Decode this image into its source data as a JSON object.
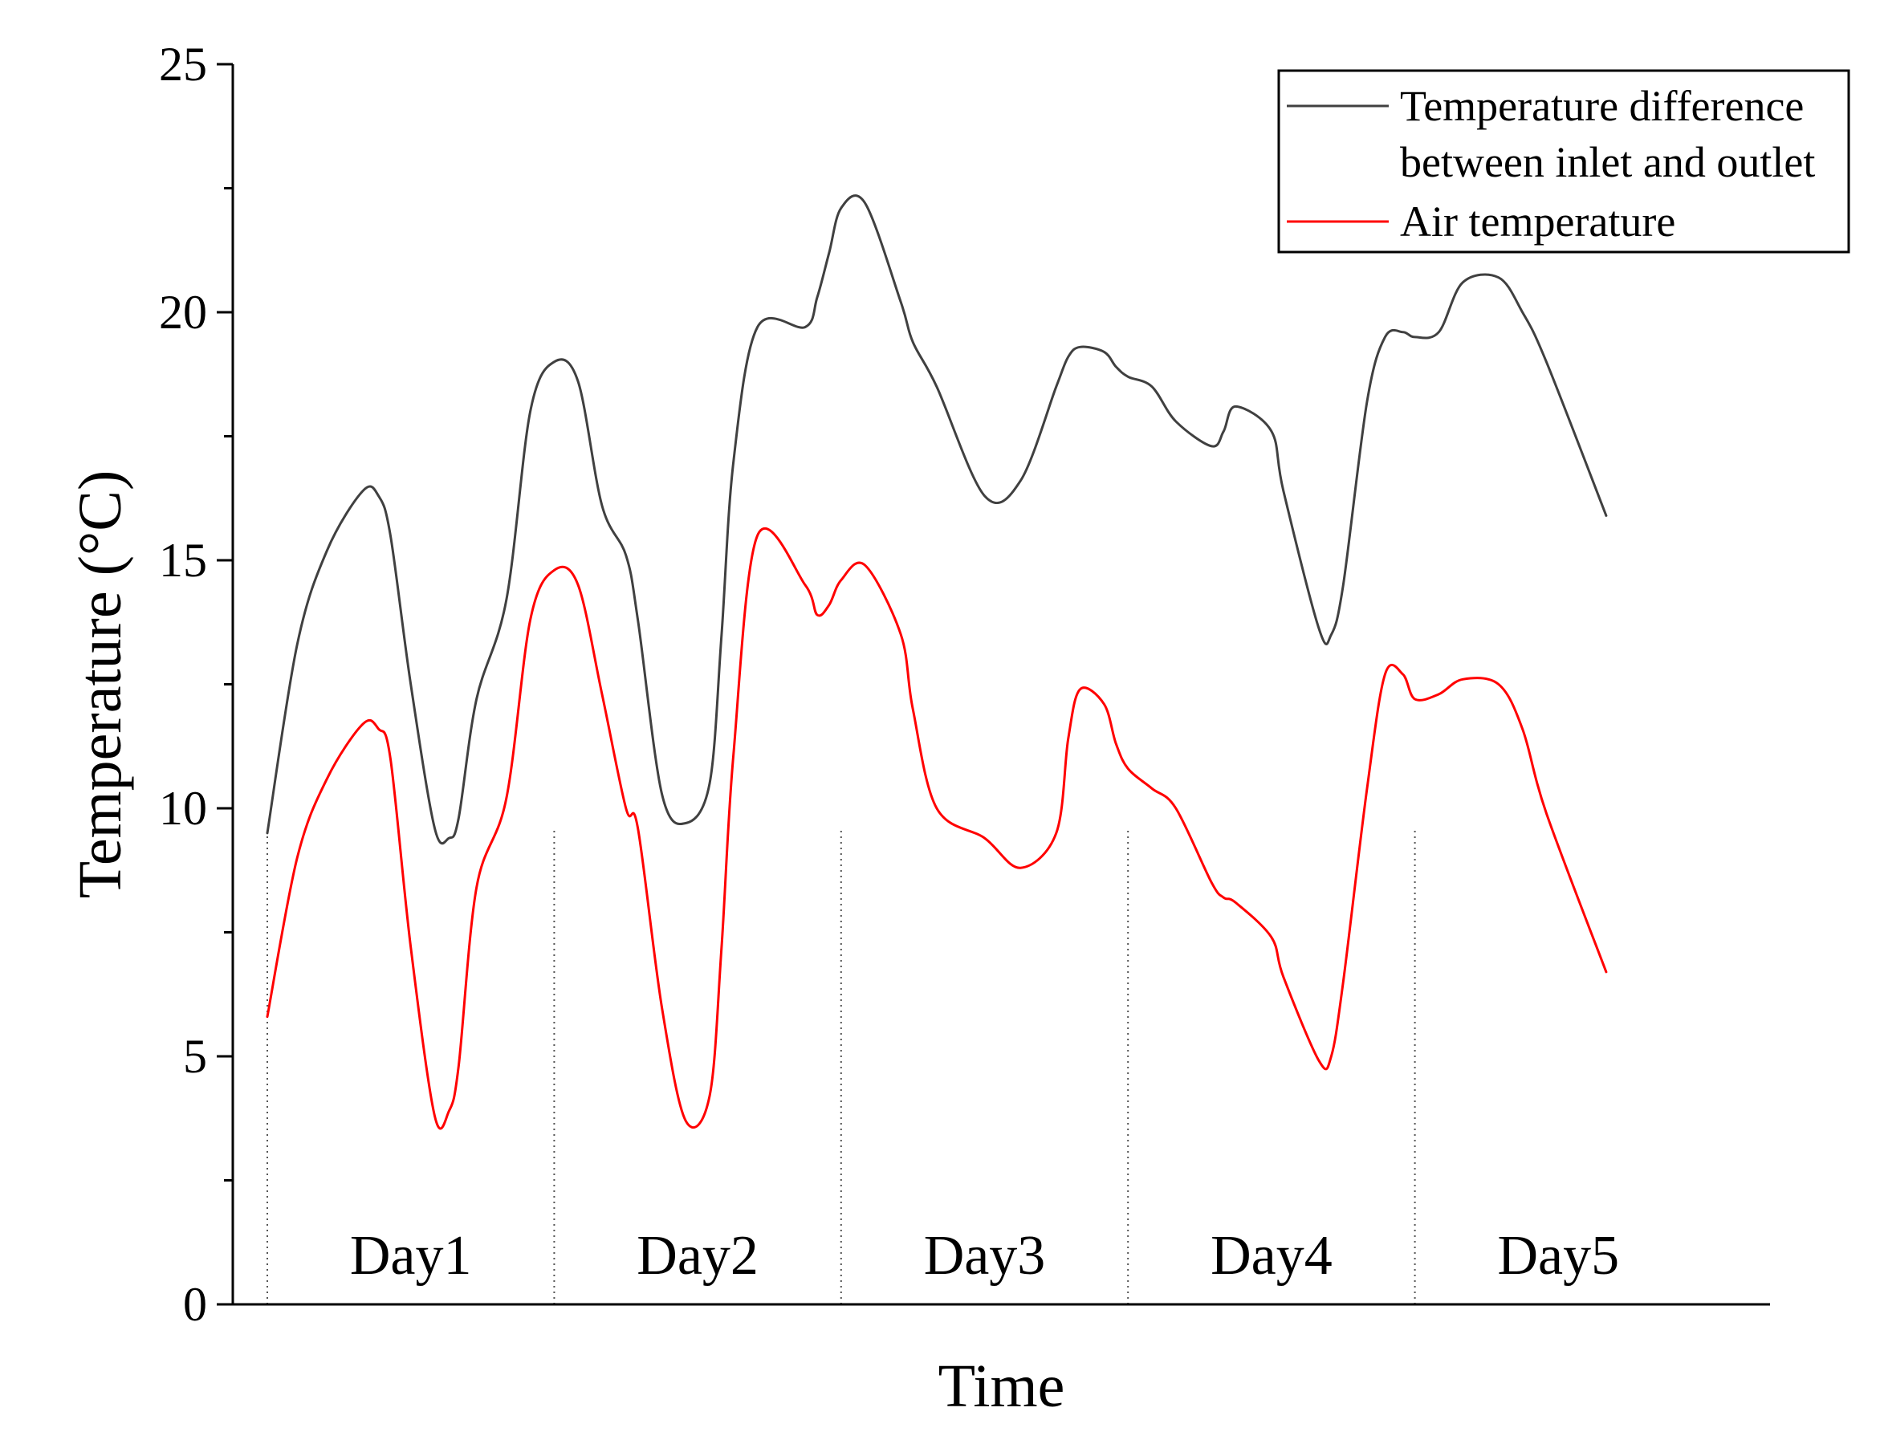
{
  "chart_data": {
    "type": "line",
    "title": "",
    "xlabel": "Time",
    "ylabel": "Temperature (°C)",
    "ylim": [
      0,
      25
    ],
    "yticks": [
      0,
      5,
      10,
      15,
      20,
      25
    ],
    "grid": false,
    "legend_position": "top-right",
    "x_unit": "hours since start",
    "xlim": [
      0,
      120
    ],
    "day_boundaries": [
      0,
      24,
      48,
      72,
      96
    ],
    "day_labels": [
      {
        "text": "Day1",
        "x": 12
      },
      {
        "text": "Day2",
        "x": 36
      },
      {
        "text": "Day3",
        "x": 60
      },
      {
        "text": "Day4",
        "x": 84
      },
      {
        "text": "Day5",
        "x": 108
      }
    ],
    "series": [
      {
        "name": "Temperature difference between inlet and outlet",
        "legend_lines": [
          "Temperature difference",
          "between inlet and outlet"
        ],
        "color": "#404040",
        "x": [
          0,
          2.5,
          5,
          8,
          9.3,
          10.3,
          12,
          14,
          15.2,
          16,
          17.5,
          20,
          22,
          24,
          26,
          28,
          30,
          31,
          33,
          35,
          37,
          38,
          39,
          41,
          45,
          46,
          47,
          48,
          50,
          53,
          54,
          56,
          60,
          63,
          66,
          67,
          68,
          70,
          71,
          72,
          74,
          76,
          79,
          80,
          81,
          84,
          85,
          88,
          89,
          90,
          92,
          93.5,
          95,
          96,
          98,
          100,
          103,
          105,
          107,
          112
        ],
        "y": [
          9.5,
          13.3,
          15.2,
          16.4,
          16.3,
          15.5,
          12.5,
          9.6,
          9.4,
          9.8,
          12.2,
          14.2,
          18.0,
          19.0,
          18.6,
          16.1,
          15.1,
          13.8,
          10.3,
          9.7,
          10.5,
          13.5,
          17.0,
          19.7,
          19.7,
          20.3,
          21.2,
          22.1,
          22.2,
          20.2,
          19.4,
          18.5,
          16.3,
          16.6,
          18.5,
          19.1,
          19.3,
          19.2,
          18.9,
          18.7,
          18.5,
          17.8,
          17.3,
          17.6,
          18.1,
          17.6,
          16.4,
          13.6,
          13.5,
          14.5,
          18.2,
          19.5,
          19.6,
          19.5,
          19.6,
          20.6,
          20.7,
          20.0,
          19.0,
          15.9
        ]
      },
      {
        "name": "Air temperature",
        "legend_lines": [
          "Air temperature"
        ],
        "color": "#ff0000",
        "x": [
          0,
          2.5,
          5,
          8,
          9.3,
          10.3,
          12,
          14,
          15.2,
          16,
          17.5,
          20,
          22,
          24,
          26,
          28,
          30,
          31,
          33,
          35,
          37,
          38,
          39,
          41,
          45,
          46,
          47,
          48,
          50,
          53,
          54,
          56,
          60,
          63,
          66,
          67,
          68,
          70,
          71,
          72,
          74,
          76,
          79,
          80,
          81,
          84,
          85,
          88,
          89,
          90,
          92,
          93.5,
          95,
          96,
          98,
          100,
          103,
          105,
          107,
          112
        ],
        "y": [
          5.8,
          9.0,
          10.6,
          11.7,
          11.6,
          11.0,
          7.2,
          3.8,
          3.9,
          4.8,
          8.4,
          10.2,
          13.8,
          14.8,
          14.5,
          12.3,
          10.0,
          9.6,
          6.0,
          3.7,
          4.2,
          7.2,
          11.1,
          15.5,
          14.5,
          13.9,
          14.1,
          14.6,
          14.9,
          13.5,
          12.0,
          10.0,
          9.4,
          8.8,
          9.5,
          11.4,
          12.4,
          12.1,
          11.3,
          10.8,
          10.4,
          10.0,
          8.5,
          8.2,
          8.1,
          7.4,
          6.6,
          4.9,
          5.0,
          6.5,
          10.4,
          12.7,
          12.7,
          12.2,
          12.3,
          12.6,
          12.5,
          11.6,
          9.9,
          6.7
        ]
      }
    ]
  }
}
